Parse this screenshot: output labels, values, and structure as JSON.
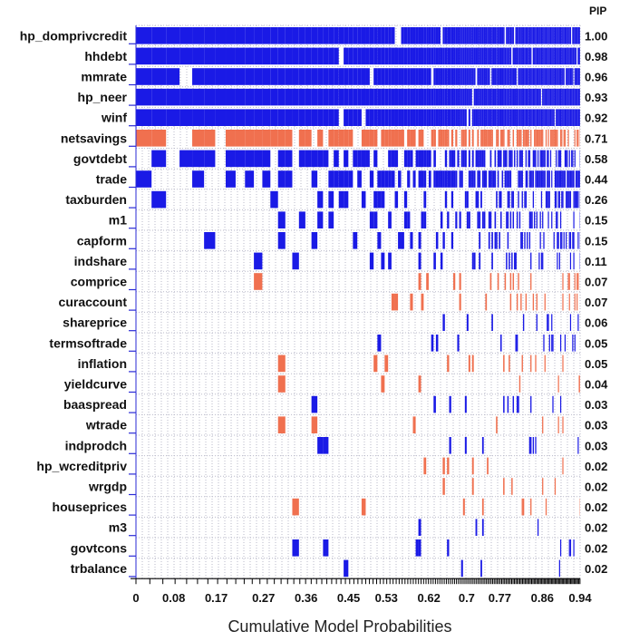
{
  "chart_data": {
    "type": "heatmap",
    "xlabel": "Cumulative Model Probabilities",
    "pip_header": "PIP",
    "xlim": [
      0,
      0.94
    ],
    "xticks": [
      "0",
      "0.08",
      "0.17",
      "0.27",
      "0.36",
      "0.45",
      "0.53",
      "0.62",
      "0.7",
      "0.77",
      "0.86",
      "0.94"
    ],
    "colors": {
      "positive": "#1a1ae6",
      "negative": "#f0704f",
      "grid": "#b9b9c9"
    },
    "legend": "none",
    "grid": true,
    "variables": [
      {
        "name": "hp_domprivcredit",
        "pip": "1.00",
        "sign": "positive"
      },
      {
        "name": "hhdebt",
        "pip": "0.98",
        "sign": "positive"
      },
      {
        "name": "mmrate",
        "pip": "0.96",
        "sign": "positive"
      },
      {
        "name": "hp_neer",
        "pip": "0.93",
        "sign": "positive"
      },
      {
        "name": "winf",
        "pip": "0.92",
        "sign": "positive"
      },
      {
        "name": "netsavings",
        "pip": "0.71",
        "sign": "negative"
      },
      {
        "name": "govtdebt",
        "pip": "0.58",
        "sign": "positive"
      },
      {
        "name": "trade",
        "pip": "0.44",
        "sign": "positive"
      },
      {
        "name": "taxburden",
        "pip": "0.26",
        "sign": "positive"
      },
      {
        "name": "m1",
        "pip": "0.15",
        "sign": "positive"
      },
      {
        "name": "capform",
        "pip": "0.15",
        "sign": "positive"
      },
      {
        "name": "indshare",
        "pip": "0.11",
        "sign": "positive"
      },
      {
        "name": "comprice",
        "pip": "0.07",
        "sign": "negative"
      },
      {
        "name": "curaccount",
        "pip": "0.07",
        "sign": "negative"
      },
      {
        "name": "shareprice",
        "pip": "0.06",
        "sign": "positive"
      },
      {
        "name": "termsoftrade",
        "pip": "0.05",
        "sign": "positive"
      },
      {
        "name": "inflation",
        "pip": "0.05",
        "sign": "negative"
      },
      {
        "name": "yieldcurve",
        "pip": "0.04",
        "sign": "negative"
      },
      {
        "name": "baaspread",
        "pip": "0.03",
        "sign": "positive"
      },
      {
        "name": "wtrade",
        "pip": "0.03",
        "sign": "negative"
      },
      {
        "name": "indprodch",
        "pip": "0.03",
        "sign": "positive"
      },
      {
        "name": "hp_wcreditpriv",
        "pip": "0.02",
        "sign": "negative"
      },
      {
        "name": "wrgdp",
        "pip": "0.02",
        "sign": "negative"
      },
      {
        "name": "houseprices",
        "pip": "0.02",
        "sign": "negative"
      },
      {
        "name": "m3",
        "pip": "0.02",
        "sign": "positive"
      },
      {
        "name": "govtcons",
        "pip": "0.02",
        "sign": "positive"
      },
      {
        "name": "trbalance",
        "pip": "0.02",
        "sign": "positive"
      }
    ]
  }
}
